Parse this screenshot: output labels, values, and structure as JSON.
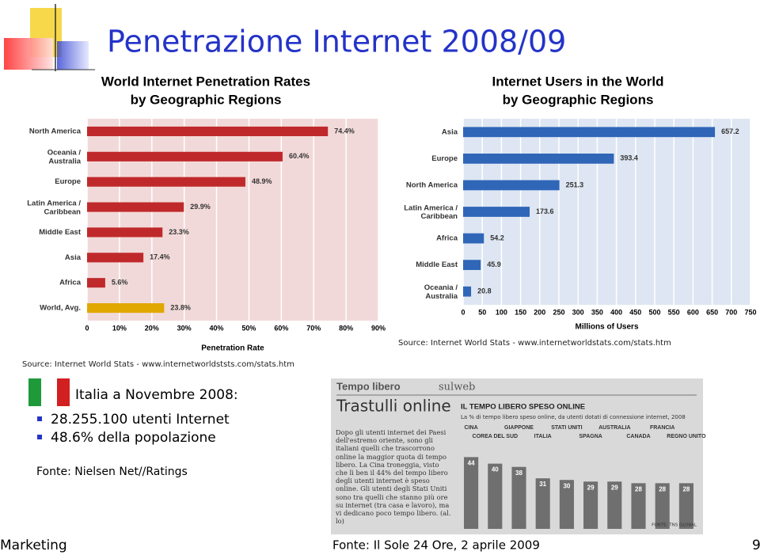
{
  "title": "Penetrazione Internet 2008/09",
  "italy": {
    "heading": "Italia a Novembre 2008:",
    "bullets": [
      "28.255.100 utenti Internet",
      "48.6% della popolazione"
    ],
    "source": "Fonte: Nielsen Net//Ratings"
  },
  "clipping": {
    "section": "Tempo libero",
    "tag": "sulweb",
    "headline": "Trastulli online",
    "text": "Dopo gli utenti internet dei Paesi dell'estremo oriente, sono gli italiani quelli che trascorrono online la maggior quota di tempo libero. La Cina troneggia, visto che lì ben il 44% del tempo libero degli utenti internet è speso online. Gli utenti degli Stati Uniti sono tra quelli che stanno più ore su internet (tra casa e lavoro), ma vi dedicano poco tempo libero. (al. lo)",
    "source": "Fonte: Il Sole 24 Ore, 2 aprile 2009"
  },
  "footer": {
    "left": "Marketing",
    "page": "9"
  },
  "chart_data": [
    {
      "type": "hbar",
      "title": "World Internet Penetration Rates",
      "subtitle": "by Geographic Regions",
      "categories": [
        "North America",
        "Oceania / Australia",
        "Europe",
        "Latin America / Caribbean",
        "Middle East",
        "Asia",
        "Africa",
        "World, Avg."
      ],
      "values": [
        74.4,
        60.4,
        48.9,
        29.9,
        23.3,
        17.4,
        5.6,
        23.8
      ],
      "value_labels": [
        "74.4%",
        "60.4%",
        "48.9%",
        "29.9%",
        "23.3%",
        "17.4%",
        "5.6%",
        "23.8%"
      ],
      "colors": [
        "#c0292b",
        "#c0292b",
        "#c0292b",
        "#c0292b",
        "#c0292b",
        "#c0292b",
        "#c0292b",
        "#e0a800"
      ],
      "xlim": [
        0,
        90
      ],
      "xticks": [
        0,
        {
          "value": 10,
          "label": "10%"
        },
        {
          "value": 20,
          "label": "20%"
        },
        {
          "value": 30,
          "label": "30%"
        },
        {
          "value": 40,
          "label": "40%"
        },
        {
          "value": 50,
          "label": "50%"
        },
        {
          "value": 60,
          "label": "60%"
        },
        {
          "value": 70,
          "label": "70%"
        },
        {
          "value": 80,
          "label": "80%"
        },
        {
          "value": 90,
          "label": "90%"
        }
      ],
      "xlabel": "Penetration Rate",
      "grid": true,
      "background": "#f2d9d9",
      "source": "Source: Internet World Stats - www.internetworldststs.com/stats.htm"
    },
    {
      "type": "hbar",
      "title": "Internet Users in the World",
      "subtitle": "by Geographic Regions",
      "categories": [
        "Asia",
        "Europe",
        "North America",
        "Latin America / Caribbean",
        "Africa",
        "Middle East",
        "Oceania / Australia"
      ],
      "values": [
        657.2,
        393.4,
        251.3,
        173.6,
        54.2,
        45.9,
        20.8
      ],
      "color": "#2f66b8",
      "xlim": [
        0,
        750
      ],
      "xticks": [
        0,
        50,
        100,
        150,
        200,
        250,
        300,
        350,
        400,
        450,
        500,
        550,
        600,
        650,
        700,
        750
      ],
      "xlabel": "Millions of Users",
      "grid": true,
      "background": "#dde6f2",
      "source": "Source: Internet World Stats - www.internetworldstats.com/stats.htm"
    },
    {
      "type": "vbar",
      "title": "IL TEMPO LIBERO SPESO ONLINE",
      "subtitle": "La % di tempo libero speso online, da utenti dotati di connessione internet, 2008",
      "categories": [
        "CINA",
        "COREA DEL SUD",
        "GIAPPONE",
        "ITALIA",
        "STATI UNITI",
        "SPAGNA",
        "AUSTRALIA",
        "CANADA",
        "FRANCIA",
        "REGNO UNITO"
      ],
      "values": [
        44,
        40,
        38,
        31,
        30,
        29,
        29,
        28,
        28,
        28
      ],
      "color": "#6f6f6f",
      "ylim": [
        0,
        50
      ],
      "source": "FONTE: TNS GLOBAL"
    }
  ]
}
